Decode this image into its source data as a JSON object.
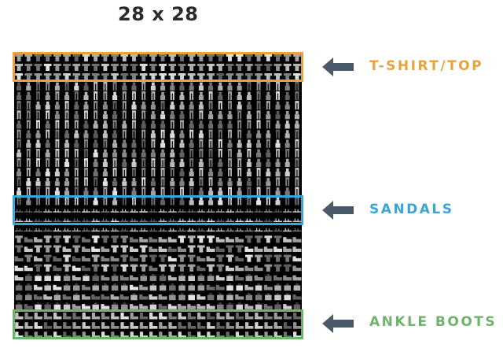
{
  "title": "28 x 28",
  "grid": {
    "rows": 30,
    "cols": 30
  },
  "categories": [
    {
      "label": "T-SHIRT/TOP",
      "color": "#e8a33d"
    },
    {
      "label": "SANDALS",
      "color": "#3aa6d8"
    },
    {
      "label": "ANKLE BOOTS",
      "color": "#6db36a"
    }
  ],
  "colors": {
    "arrow": "#4b5a6b",
    "title": "#2b2b2b"
  }
}
